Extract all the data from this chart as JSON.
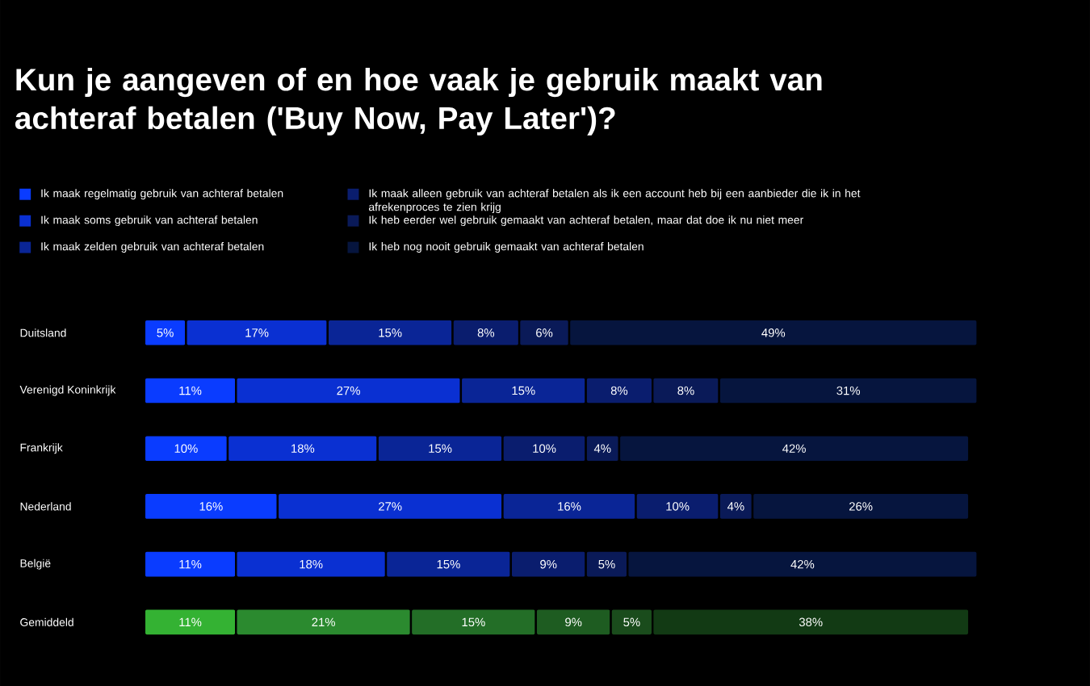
{
  "chart_data": {
    "type": "bar",
    "title": "Kun je aangeven of en hoe vaak je gebruik maakt van achteraf betalen ('Buy Now, Pay Later')?",
    "stacked": true,
    "orientation": "horizontal",
    "legend": "top",
    "tick_labels": "y",
    "categories": [
      "Duitsland",
      "Verenigd Koninkrijk",
      "Frankrijk",
      "Nederland",
      "België",
      "Gemiddeld"
    ],
    "series": [
      {
        "name": "Ik maak regelmatig gebruik van achteraf betalen",
        "color": "#0a3cff",
        "colors": [
          "#0a3cff",
          "#0a3cff",
          "#0a3cff",
          "#0a3cff",
          "#0a3cff",
          "#34b233"
        ],
        "values": [
          5,
          11,
          10,
          16,
          11,
          11
        ],
        "value_labels": [
          "5%",
          "11%",
          "10%",
          "16%",
          "11%",
          "11%"
        ]
      },
      {
        "name": "Ik maak soms gebruik van achteraf betalen",
        "color": "#0a30d2",
        "colors": [
          "#0a30d2",
          "#0a30d2",
          "#0a30d2",
          "#0a30d2",
          "#0a30d2",
          "#2b8a2f"
        ],
        "values": [
          17,
          27,
          18,
          27,
          18,
          21
        ],
        "value_labels": [
          "17%",
          "27%",
          "18%",
          "27%",
          "18%",
          "21%"
        ]
      },
      {
        "name": "Ik maak zelden gebruik van achteraf betalen",
        "color": "#0a2596",
        "colors": [
          "#0a2596",
          "#0a2596",
          "#0a2596",
          "#0a2596",
          "#0a2596",
          "#236e27"
        ],
        "values": [
          15,
          15,
          15,
          16,
          15,
          15
        ],
        "value_labels": [
          "15%",
          "15%",
          "15%",
          "16%",
          "15%",
          "15%"
        ]
      },
      {
        "name": "Ik maak alleen gebruik van achteraf betalen als ik een account heb bij een aanbieder die ik in het afrekenproces te zien krijg",
        "color": "#0a1d6e",
        "colors": [
          "#0a1d6e",
          "#0a1d6e",
          "#0a1d6e",
          "#0a1d6e",
          "#0a1d6e",
          "#1e5c21"
        ],
        "values": [
          8,
          8,
          10,
          10,
          9,
          9
        ],
        "value_labels": [
          "8%",
          "8%",
          "10%",
          "10%",
          "9%",
          "9%"
        ]
      },
      {
        "name": "Ik heb eerder wel gebruik gemaakt van achteraf betalen, maar dat doe ik nu niet meer",
        "color": "#0a1a58",
        "colors": [
          "#0a1a58",
          "#0a1a58",
          "#0a1a58",
          "#0a1a58",
          "#0a1a58",
          "#1a4c1c"
        ],
        "values": [
          6,
          8,
          4,
          4,
          5,
          5
        ],
        "value_labels": [
          "6%",
          "8%",
          "4%",
          "4%",
          "5%",
          "5%"
        ]
      },
      {
        "name": "Ik heb nog nooit gebruik gemaakt van achteraf betalen",
        "color": "#06153e",
        "colors": [
          "#06153e",
          "#06153e",
          "#06153e",
          "#06153e",
          "#06153e",
          "#123a14"
        ],
        "values": [
          49,
          31,
          42,
          26,
          42,
          38
        ],
        "value_labels": [
          "49%",
          "31%",
          "42%",
          "26%",
          "42%",
          "38%"
        ]
      }
    ]
  }
}
